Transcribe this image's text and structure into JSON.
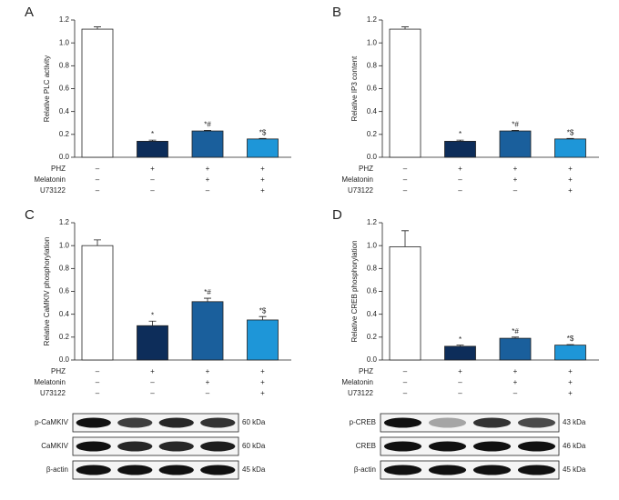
{
  "chart_data": [
    {
      "type": "bar",
      "panel": "A",
      "y_label": "Relative PLC activity",
      "values": [
        1.12,
        0.14,
        0.23,
        0.16
      ],
      "errors": [
        0.02,
        0.01,
        0.005,
        0.005
      ],
      "annotations": [
        null,
        "*",
        "*#",
        "*$"
      ],
      "colors": [
        "#ffffff",
        "#0d2d5a",
        "#1a5f9c",
        "#1e96d8"
      ],
      "ylim": [
        0,
        1.2
      ],
      "yticks": [
        {
          "value": 0,
          "label": "0.0"
        },
        0.2,
        0.4,
        0.6,
        0.8,
        {
          "value": 1,
          "label": "1.0"
        },
        1.2
      ],
      "conditions": [
        {
          "name": "PHZ",
          "values": [
            "–",
            "+",
            "+",
            "+"
          ]
        },
        {
          "name": "Melatonin",
          "values": [
            "–",
            "–",
            "+",
            "+"
          ]
        },
        {
          "name": "U73122",
          "values": [
            "–",
            "–",
            "–",
            "+"
          ]
        }
      ]
    },
    {
      "type": "bar",
      "panel": "B",
      "y_label": "Relative IP3 content",
      "values": [
        1.12,
        0.14,
        0.23,
        0.16
      ],
      "errors": [
        0.02,
        0.01,
        0.005,
        0.005
      ],
      "annotations": [
        null,
        "*",
        "*#",
        "*$"
      ],
      "colors": [
        "#ffffff",
        "#0d2d5a",
        "#1a5f9c",
        "#1e96d8"
      ],
      "ylim": [
        0,
        1.2
      ],
      "yticks": [
        {
          "value": 0,
          "label": "0.0"
        },
        0.2,
        0.4,
        0.6,
        0.8,
        {
          "value": 1,
          "label": "1.0"
        },
        1.2
      ],
      "conditions": [
        {
          "name": "PHZ",
          "values": [
            "–",
            "+",
            "+",
            "+"
          ]
        },
        {
          "name": "Melatonin",
          "values": [
            "–",
            "–",
            "+",
            "+"
          ]
        },
        {
          "name": "U73122",
          "values": [
            "–",
            "–",
            "–",
            "+"
          ]
        }
      ]
    },
    {
      "type": "bar",
      "panel": "C",
      "y_label": "Relative CaMKIV phosphorylation",
      "values": [
        1.0,
        0.3,
        0.51,
        0.35
      ],
      "errors": [
        0.05,
        0.04,
        0.03,
        0.03
      ],
      "annotations": [
        null,
        "*",
        "*#",
        "*$"
      ],
      "colors": [
        "#ffffff",
        "#0d2d5a",
        "#1a5f9c",
        "#1e96d8"
      ],
      "ylim": [
        0,
        1.2
      ],
      "yticks": [
        {
          "value": 0,
          "label": "0.0"
        },
        0.2,
        0.4,
        0.6,
        0.8,
        {
          "value": 1,
          "label": "1.0"
        },
        1.2
      ],
      "conditions": [
        {
          "name": "PHZ",
          "values": [
            "–",
            "+",
            "+",
            "+"
          ]
        },
        {
          "name": "Melatonin",
          "values": [
            "–",
            "–",
            "+",
            "+"
          ]
        },
        {
          "name": "U73122",
          "values": [
            "–",
            "–",
            "–",
            "+"
          ]
        }
      ]
    },
    {
      "type": "bar",
      "panel": "D",
      "y_label": "Relative CREB phosphorylation",
      "values": [
        0.99,
        0.12,
        0.19,
        0.13
      ],
      "errors": [
        0.14,
        0.01,
        0.01,
        0.005
      ],
      "annotations": [
        null,
        "*",
        "*#",
        "*$"
      ],
      "colors": [
        "#ffffff",
        "#0d2d5a",
        "#1a5f9c",
        "#1e96d8"
      ],
      "ylim": [
        0,
        1.2
      ],
      "yticks": [
        {
          "value": 0,
          "label": "0.0"
        },
        0.2,
        0.4,
        0.6,
        0.8,
        {
          "value": 1,
          "label": "1.0"
        },
        1.2
      ],
      "conditions": [
        {
          "name": "PHZ",
          "values": [
            "–",
            "+",
            "+",
            "+"
          ]
        },
        {
          "name": "Melatonin",
          "values": [
            "–",
            "–",
            "+",
            "+"
          ]
        },
        {
          "name": "U73122",
          "values": [
            "–",
            "–",
            "–",
            "+"
          ]
        }
      ]
    }
  ],
  "blots": [
    {
      "rows": [
        {
          "label": "p-CaMKIV",
          "size": "60 kDa"
        },
        {
          "label": "CaMKIV",
          "size": "60 kDa"
        },
        {
          "label": "β-actin",
          "size": "45 kDa"
        }
      ]
    },
    {
      "rows": [
        {
          "label": "p-CREB",
          "size": "43 kDa"
        },
        {
          "label": "CREB",
          "size": "46 kDa"
        },
        {
          "label": "β-actin",
          "size": "45 kDa"
        }
      ]
    }
  ]
}
